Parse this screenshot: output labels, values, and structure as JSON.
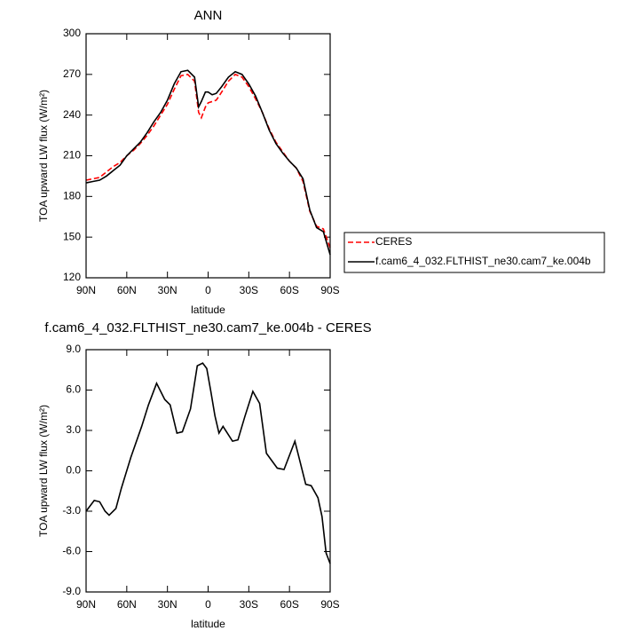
{
  "chart_data": [
    {
      "type": "line",
      "title": "ANN",
      "xlabel": "latitude",
      "ylabel": "TOA upward LW flux (W/m²)",
      "x": [
        90,
        85,
        80,
        75,
        70,
        65,
        60,
        55,
        50,
        45,
        40,
        35,
        30,
        25,
        20,
        15,
        10,
        7,
        5,
        2,
        0,
        -3,
        -6,
        -10,
        -15,
        -20,
        -25,
        -30,
        -35,
        -40,
        -45,
        -50,
        -55,
        -60,
        -65,
        -70,
        -75,
        -80,
        -85,
        -90
      ],
      "series": [
        {
          "name": "CERES",
          "color": "#ff0000",
          "line_style": "dashed",
          "values": [
            192,
            193,
            194,
            198,
            202,
            205,
            210,
            214,
            219,
            225,
            232,
            240,
            248,
            259,
            269,
            270,
            265,
            242,
            238,
            246,
            249,
            250,
            251,
            257,
            265,
            270,
            268,
            261,
            252,
            242,
            230,
            220,
            213,
            206,
            201,
            191,
            169,
            158,
            156,
            142
          ]
        },
        {
          "name": "f.cam6_4_032.FLTHIST_ne30.cam7_ke.004b",
          "color": "#000000",
          "line_style": "solid",
          "values": [
            190,
            191,
            192,
            195,
            199,
            203,
            210,
            215,
            220,
            227,
            235,
            242,
            251,
            263,
            272,
            273,
            268,
            246,
            250,
            257,
            257,
            255,
            256,
            261,
            268,
            272,
            270,
            263,
            254,
            242,
            229,
            219,
            212,
            206,
            201,
            193,
            170,
            157,
            154,
            137
          ]
        }
      ],
      "xlim": [
        90,
        -90
      ],
      "xticks": [
        {
          "value": 90,
          "label": "90N"
        },
        {
          "value": 60,
          "label": "60N"
        },
        {
          "value": 30,
          "label": "30N"
        },
        0,
        {
          "value": -30,
          "label": "30S"
        },
        {
          "value": -60,
          "label": "60S"
        },
        {
          "value": -90,
          "label": "90S"
        }
      ],
      "ylim": [
        120,
        300
      ],
      "yticks": [
        120,
        150,
        180,
        210,
        240,
        270,
        300
      ],
      "legend": "right"
    },
    {
      "type": "line",
      "title": "f.cam6_4_032.FLTHIST_ne30.cam7_ke.004b - CERES",
      "xlabel": "latitude",
      "ylabel": "TOA upward LW flux (W/m²)",
      "x": [
        90,
        84,
        80,
        76,
        73,
        68,
        64,
        57,
        49,
        44,
        38,
        32,
        28,
        23,
        19,
        13,
        8,
        4,
        1,
        -2,
        -5,
        -8,
        -11,
        -18,
        -22,
        -27,
        -33,
        -38,
        -43,
        -51,
        -56,
        -64,
        -72,
        -76,
        -81,
        -84,
        -87,
        -90
      ],
      "series": [
        {
          "name": null,
          "color": "#000000",
          "line_style": "solid",
          "values": [
            -3.0,
            -2.2,
            -2.3,
            -3.0,
            -3.3,
            -2.8,
            -1.3,
            1.0,
            3.3,
            4.9,
            6.5,
            5.3,
            4.9,
            2.8,
            2.9,
            4.6,
            7.8,
            8.0,
            7.6,
            5.9,
            4.1,
            2.8,
            3.3,
            2.2,
            2.3,
            4.0,
            5.9,
            5.0,
            1.3,
            0.2,
            0.1,
            2.2,
            -1.0,
            -1.1,
            -2.0,
            -3.4,
            -6.1,
            -6.9
          ]
        }
      ],
      "xlim": [
        90,
        -90
      ],
      "xticks": [
        {
          "value": 90,
          "label": "90N"
        },
        {
          "value": 60,
          "label": "60N"
        },
        {
          "value": 30,
          "label": "30N"
        },
        0,
        {
          "value": -30,
          "label": "30S"
        },
        {
          "value": -60,
          "label": "60S"
        },
        {
          "value": -90,
          "label": "90S"
        }
      ],
      "ylim": [
        -9,
        9
      ],
      "yticks": [
        {
          "value": -9,
          "label": "-9.0"
        },
        {
          "value": -6,
          "label": "-6.0"
        },
        {
          "value": -3,
          "label": "-3.0"
        },
        {
          "value": 0,
          "label": "0.0"
        },
        {
          "value": 3,
          "label": "3.0"
        },
        {
          "value": 6,
          "label": "6.0"
        },
        {
          "value": 9,
          "label": "9.0"
        }
      ]
    }
  ]
}
